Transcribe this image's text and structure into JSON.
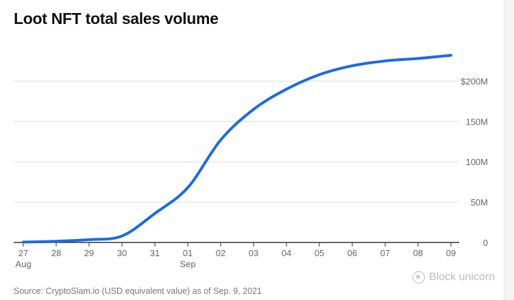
{
  "chart_data": {
    "type": "line",
    "title": "Loot NFT total sales volume",
    "source": "Source: CryptoSlam.io (USD equivalent value) as of Sep. 9, 2021",
    "x_labels": [
      "27",
      "28",
      "29",
      "30",
      "31",
      "01",
      "02",
      "03",
      "04",
      "05",
      "06",
      "07",
      "08",
      "09"
    ],
    "month_labels": [
      {
        "index": 0,
        "label": "Aug"
      },
      {
        "index": 5,
        "label": "Sep"
      }
    ],
    "y_ticks": [
      {
        "value": 0,
        "label": "0"
      },
      {
        "value": 50,
        "label": "50M"
      },
      {
        "value": 100,
        "label": "100M"
      },
      {
        "value": 150,
        "label": "150M"
      },
      {
        "value": 200,
        "label": "$200M"
      }
    ],
    "ylim": [
      0,
      240
    ],
    "series": [
      {
        "color": "#1a6ae6",
        "values": [
          0.5,
          1.5,
          3.5,
          8,
          36,
          68,
          127,
          165,
          190,
          208,
          219,
          225,
          228,
          232
        ]
      }
    ],
    "grid": true
  },
  "watermark": {
    "text": "Block unicorn",
    "icon": "wechat-icon"
  }
}
